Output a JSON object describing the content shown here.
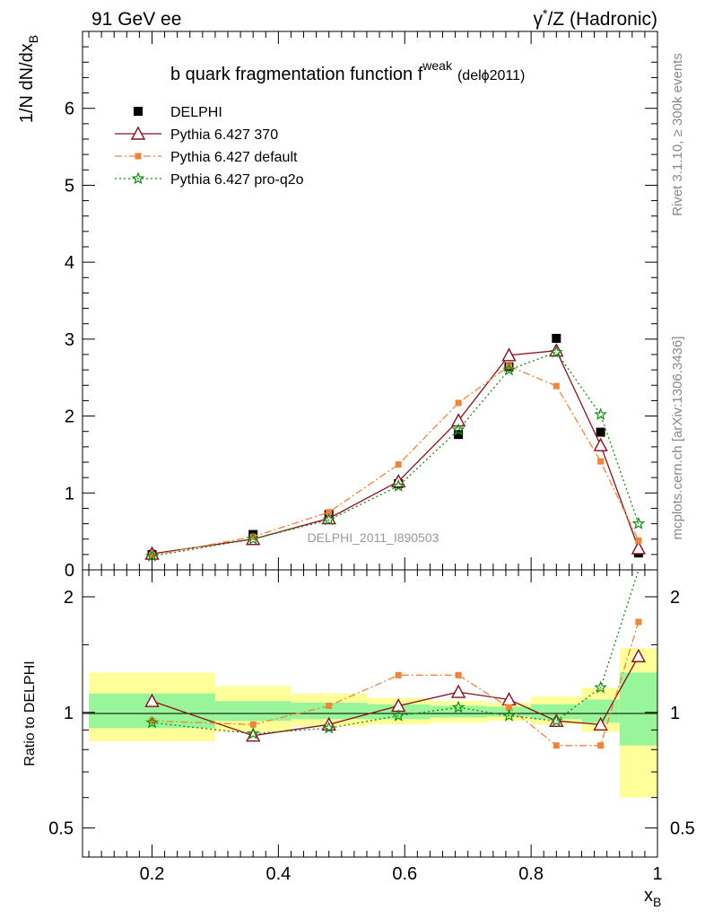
{
  "header": {
    "left": "91 GeV ee",
    "right_gamma": "γ",
    "right_star": "*",
    "right_rest": "/Z (Hadronic)"
  },
  "side": {
    "rivet": "Rivet 3.1.10, ≥ 300k events",
    "mcplots": "mcplots.cern.ch [arXiv:1306.3436]"
  },
  "chart_data": [
    {
      "type": "line",
      "title_main": "b quark fragmentation function f",
      "title_sup": "weak",
      "title_tail": "(delϕ2011)",
      "ylabel_main": "1/N dN/dx",
      "ylabel_sub": "B",
      "ylim": [
        0,
        7
      ],
      "y_ticks": [
        "0",
        "1",
        "2",
        "3",
        "4",
        "5",
        "6"
      ],
      "watermark": "DELPHI_2011_I890503",
      "legend_position": "top-left",
      "series": [
        {
          "name": "DELPHI",
          "color": "#000000",
          "marker": "square",
          "x": [
            0.2,
            0.36,
            0.48,
            0.59,
            0.685,
            0.765,
            0.84,
            0.91,
            0.97
          ],
          "y": [
            0.2,
            0.46,
            0.72,
            1.12,
            1.76,
            2.64,
            3.01,
            1.79,
            0.22
          ]
        },
        {
          "name": "Pythia 6.427 370",
          "color": "#8b0f1e",
          "marker": "triangle",
          "x": [
            0.2,
            0.36,
            0.48,
            0.59,
            0.685,
            0.765,
            0.84,
            0.91,
            0.97
          ],
          "y": [
            0.21,
            0.4,
            0.67,
            1.15,
            1.94,
            2.79,
            2.85,
            1.62,
            0.28
          ]
        },
        {
          "name": "Pythia 6.427 default",
          "color": "#f2843a",
          "marker": "smallsquare",
          "x": [
            0.2,
            0.36,
            0.48,
            0.59,
            0.685,
            0.765,
            0.84,
            0.91,
            0.97
          ],
          "y": [
            0.19,
            0.43,
            0.75,
            1.37,
            2.17,
            2.65,
            2.39,
            1.41,
            0.38
          ]
        },
        {
          "name": "Pythia 6.427 pro-q2o",
          "color": "#138a13",
          "marker": "star",
          "x": [
            0.2,
            0.36,
            0.48,
            0.59,
            0.685,
            0.765,
            0.84,
            0.91,
            0.97
          ],
          "y": [
            0.18,
            0.4,
            0.65,
            1.09,
            1.82,
            2.6,
            2.83,
            2.02,
            0.6
          ]
        }
      ]
    },
    {
      "type": "line",
      "ylabel": "Ratio to DELPHI",
      "xlabel_main": "x",
      "xlabel_sub": "B",
      "xlim": [
        0.09,
        1.0
      ],
      "ylim": [
        0.42,
        2.35
      ],
      "log_y": true,
      "x_ticks": [
        "0.2",
        "0.4",
        "0.6",
        "0.8",
        "1"
      ],
      "y_ticks": [
        "0.5",
        "1",
        "2"
      ],
      "bands": [
        {
          "x0": 0.1,
          "x1": 0.3,
          "stat": [
            0.91,
            1.12
          ],
          "total": [
            0.84,
            1.27
          ]
        },
        {
          "x0": 0.3,
          "x1": 0.42,
          "stat": [
            0.95,
            1.07
          ],
          "total": [
            0.89,
            1.17
          ]
        },
        {
          "x0": 0.42,
          "x1": 0.54,
          "stat": [
            0.96,
            1.06
          ],
          "total": [
            0.92,
            1.12
          ]
        },
        {
          "x0": 0.54,
          "x1": 0.64,
          "stat": [
            0.96,
            1.05
          ],
          "total": [
            0.93,
            1.09
          ]
        },
        {
          "x0": 0.64,
          "x1": 0.73,
          "stat": [
            0.97,
            1.04
          ],
          "total": [
            0.94,
            1.07
          ]
        },
        {
          "x0": 0.73,
          "x1": 0.8,
          "stat": [
            0.975,
            1.035
          ],
          "total": [
            0.95,
            1.06
          ]
        },
        {
          "x0": 0.8,
          "x1": 0.88,
          "stat": [
            0.96,
            1.05
          ],
          "total": [
            0.93,
            1.1
          ]
        },
        {
          "x0": 0.88,
          "x1": 0.94,
          "stat": [
            0.94,
            1.08
          ],
          "total": [
            0.89,
            1.16
          ]
        },
        {
          "x0": 0.94,
          "x1": 1.0,
          "stat": [
            0.82,
            1.27
          ],
          "total": [
            0.6,
            1.47
          ]
        }
      ],
      "series": [
        {
          "name": "Pythia 6.427 370",
          "color": "#8b0f1e",
          "marker": "triangle",
          "x": [
            0.2,
            0.36,
            0.48,
            0.59,
            0.685,
            0.765,
            0.84,
            0.91,
            0.97
          ],
          "y": [
            1.07,
            0.87,
            0.93,
            1.04,
            1.13,
            1.08,
            0.95,
            0.93,
            1.4
          ]
        },
        {
          "name": "Pythia 6.427 default",
          "color": "#f2843a",
          "marker": "smallsquare",
          "x": [
            0.2,
            0.36,
            0.48,
            0.59,
            0.685,
            0.765,
            0.84,
            0.91,
            0.97
          ],
          "y": [
            0.95,
            0.93,
            1.04,
            1.25,
            1.25,
            1.03,
            0.82,
            0.82,
            1.72
          ]
        },
        {
          "name": "Pythia 6.427 pro-q2o",
          "color": "#138a13",
          "marker": "star",
          "x": [
            0.2,
            0.36,
            0.48,
            0.59,
            0.685,
            0.765,
            0.84,
            0.91,
            0.97,
            0.99
          ],
          "y": [
            0.94,
            0.88,
            0.91,
            0.98,
            1.03,
            0.98,
            0.95,
            1.16,
            2.35,
            2.35
          ]
        }
      ]
    }
  ]
}
